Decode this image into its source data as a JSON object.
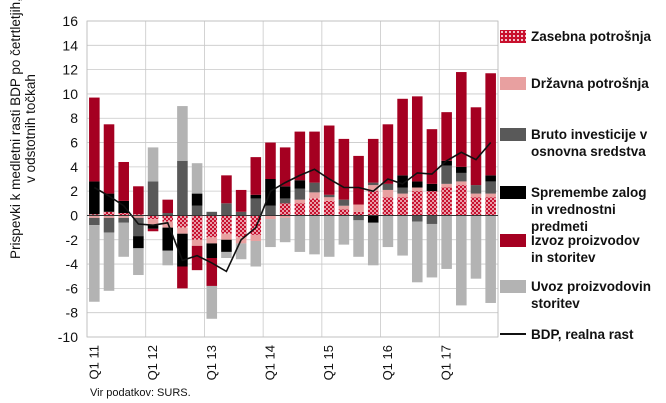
{
  "chart_data": {
    "type": "bar",
    "stacked": true,
    "ylabel": "Prispevki k medletni rasti BDP po četrtletjih,\nv odstotnih točkah",
    "ylim": [
      -10,
      16
    ],
    "yticks": [
      -10,
      -8,
      -6,
      -4,
      -2,
      0,
      2,
      4,
      6,
      8,
      10,
      12,
      14,
      16
    ],
    "grid": true,
    "legend_position": "right",
    "categories": [
      "Q1 11",
      "Q2 11",
      "Q3 11",
      "Q4 11",
      "Q1 12",
      "Q2 12",
      "Q3 12",
      "Q4 12",
      "Q1 13",
      "Q2 13",
      "Q3 13",
      "Q4 13",
      "Q1 14",
      "Q2 14",
      "Q3 14",
      "Q4 14",
      "Q1 15",
      "Q2 15",
      "Q3 15",
      "Q4 15",
      "Q1 16",
      "Q2 16",
      "Q3 16",
      "Q4 16",
      "Q1 17",
      "Q2 17",
      "Q3 17",
      "Q4 17"
    ],
    "xtick_labels": [
      "Q1 11",
      "Q1 12",
      "Q1 13",
      "Q1 14",
      "Q1 15",
      "Q1 16",
      "Q1 17"
    ],
    "series": [
      {
        "name": "Zasebna potrošnja",
        "color": "#c8102e",
        "values": [
          0.1,
          0.3,
          0.2,
          0.1,
          -0.3,
          -0.5,
          -1.0,
          -2.0,
          -1.8,
          -1.5,
          -1.8,
          -1.6,
          0.0,
          1.0,
          1.0,
          1.4,
          1.2,
          0.5,
          0.3,
          2.0,
          1.5,
          1.5,
          2.0,
          2.0,
          2.3,
          2.5,
          1.5,
          1.5
        ]
      },
      {
        "name": "Državna potrošnja",
        "color": "#e8a0a0",
        "values": [
          -0.2,
          -0.2,
          -0.2,
          -0.2,
          -0.5,
          -0.5,
          -0.5,
          -0.5,
          -0.5,
          -0.5,
          -0.5,
          -0.5,
          -0.3,
          -0.2,
          0.3,
          0.5,
          0.3,
          0.3,
          0.6,
          0.5,
          0.6,
          0.3,
          0.3,
          0.0,
          0.3,
          0.3,
          0.3,
          0.3
        ]
      },
      {
        "name": "Bruto investicije v osnovna sredstva",
        "color": "#595959",
        "values": [
          -0.6,
          -1.2,
          -0.4,
          -1.5,
          2.8,
          0.2,
          4.5,
          0.8,
          0.3,
          1.0,
          0.3,
          1.4,
          0.8,
          0.4,
          0.9,
          0.8,
          0.2,
          0.5,
          -0.4,
          0.2,
          0.5,
          0.5,
          -0.5,
          -0.7,
          1.5,
          0.7,
          0.7,
          1.0
        ]
      },
      {
        "name": "Spremembe zalog in vrednostni predmeti",
        "color": "#000000",
        "values": [
          2.7,
          1.5,
          1.0,
          -1.0,
          -0.3,
          -1.9,
          -2.7,
          1.0,
          -1.2,
          -1.0,
          0.0,
          0.3,
          2.2,
          1.0,
          0.7,
          0.0,
          0.0,
          0.0,
          0.0,
          -0.6,
          0.0,
          1.0,
          0.5,
          0.6,
          0.4,
          0.5,
          0.0,
          0.5
        ]
      },
      {
        "name": "Izvoz proizvodov in storitev",
        "color": "#a50021",
        "values": [
          6.9,
          5.7,
          3.2,
          2.3,
          -0.2,
          1.1,
          -1.8,
          -2.0,
          -2.3,
          2.3,
          1.8,
          3.1,
          3.0,
          3.2,
          4.0,
          4.2,
          5.7,
          5.0,
          4.0,
          3.6,
          4.9,
          6.3,
          7.0,
          4.5,
          4.0,
          7.8,
          6.4,
          8.4
        ]
      },
      {
        "name": "Uvoz proizvodov in storitev",
        "color": "#b3b3b3",
        "values": [
          -6.3,
          -4.8,
          -2.8,
          -2.2,
          2.8,
          -1.2,
          4.5,
          2.5,
          -2.7,
          -0.5,
          -1.3,
          -2.1,
          -2.3,
          -2.0,
          -3.0,
          -3.2,
          -3.4,
          -2.4,
          -3.0,
          -3.5,
          -2.6,
          -3.3,
          -5.0,
          -4.4,
          -4.4,
          -7.4,
          -5.2,
          -7.2
        ]
      }
    ],
    "line": {
      "name": "BDP, realna rast",
      "color": "#111111",
      "values": [
        2.3,
        1.6,
        0.8,
        -0.7,
        -0.8,
        -0.6,
        -3.7,
        -3.3,
        -3.9,
        -4.6,
        -2.0,
        -1.0,
        2.0,
        2.7,
        3.3,
        3.8,
        3.0,
        2.3,
        2.3,
        2.0,
        3.0,
        2.6,
        3.5,
        3.4,
        4.5,
        5.2,
        4.6,
        6.0
      ]
    }
  },
  "legend": {
    "items": [
      {
        "label": "Zasebna potrošnja"
      },
      {
        "label": "Državna potrošnja"
      },
      {
        "label": "Bruto investicije v\nosnovna sredstva"
      },
      {
        "label": "Spremembe zalog\nin vrednostni\npredmeti"
      },
      {
        "label": "Izvoz proizvodov\nin storitev"
      },
      {
        "label": "Uvoz proizvodovin\nstoritev"
      },
      {
        "label": "BDP, realna rast"
      }
    ]
  },
  "source": "Vir podatkov: SURS."
}
